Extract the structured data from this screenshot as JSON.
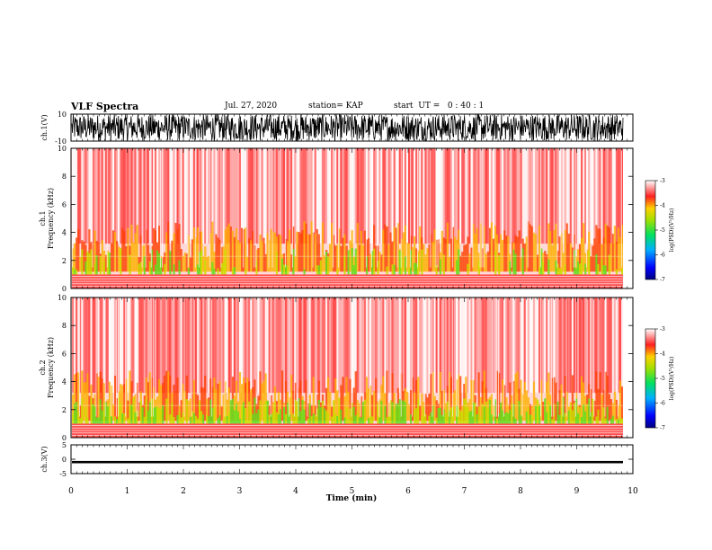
{
  "header": {
    "title": "VLF Spectra",
    "date": "Jul. 27, 2020",
    "station": "station= KAP",
    "start_ut": "start  UT =   0 : 40 : 1"
  },
  "chart_data": [
    {
      "type": "line",
      "title": "",
      "ylabel": "ch.1(V)",
      "xlim": [
        0,
        10
      ],
      "ylim": [
        -10,
        10
      ],
      "yticks": [
        "10",
        "-10"
      ],
      "description_series": [
        {
          "name": "",
          "amplitude_range": [
            -10,
            10
          ],
          "color": "#000000"
        }
      ]
    },
    {
      "type": "heatmap",
      "ylabel": "ch.1\nFrequency  (kHz)",
      "xlim": [
        0,
        10
      ],
      "ylim": [
        0,
        10
      ],
      "yticks": [
        "0",
        "2",
        "4",
        "6",
        "8",
        "10"
      ],
      "colorbar": {
        "label": "log(PSD)(V²/Hz)",
        "range": [
          -7,
          -3
        ],
        "ticks": [
          "-3",
          "-4",
          "-5",
          "-6",
          "-7"
        ]
      }
    },
    {
      "type": "heatmap",
      "ylabel": "ch.2\nFrequency  (kHz)",
      "xlim": [
        0,
        10
      ],
      "ylim": [
        0,
        10
      ],
      "yticks": [
        "0",
        "2",
        "4",
        "6",
        "8",
        "10"
      ],
      "colorbar": {
        "label": "log(PSD)(V²/Hz)",
        "range": [
          -7,
          -3
        ],
        "ticks": [
          "-3",
          "-4",
          "-5",
          "-6",
          "-7"
        ]
      }
    },
    {
      "type": "line",
      "ylabel": "ch.3(V)",
      "xlim": [
        0,
        10
      ],
      "ylim": [
        -5,
        5
      ],
      "yticks": [
        "5",
        "0",
        "-5"
      ],
      "xlabel": "Time  (min)",
      "xticks": [
        "0",
        "1",
        "2",
        "3",
        "4",
        "5",
        "6",
        "7",
        "8",
        "9",
        "10"
      ],
      "description_series": [
        {
          "name": "",
          "amplitude_range": [
            -1.4,
            -0.6
          ],
          "color": "#000000"
        }
      ]
    }
  ]
}
